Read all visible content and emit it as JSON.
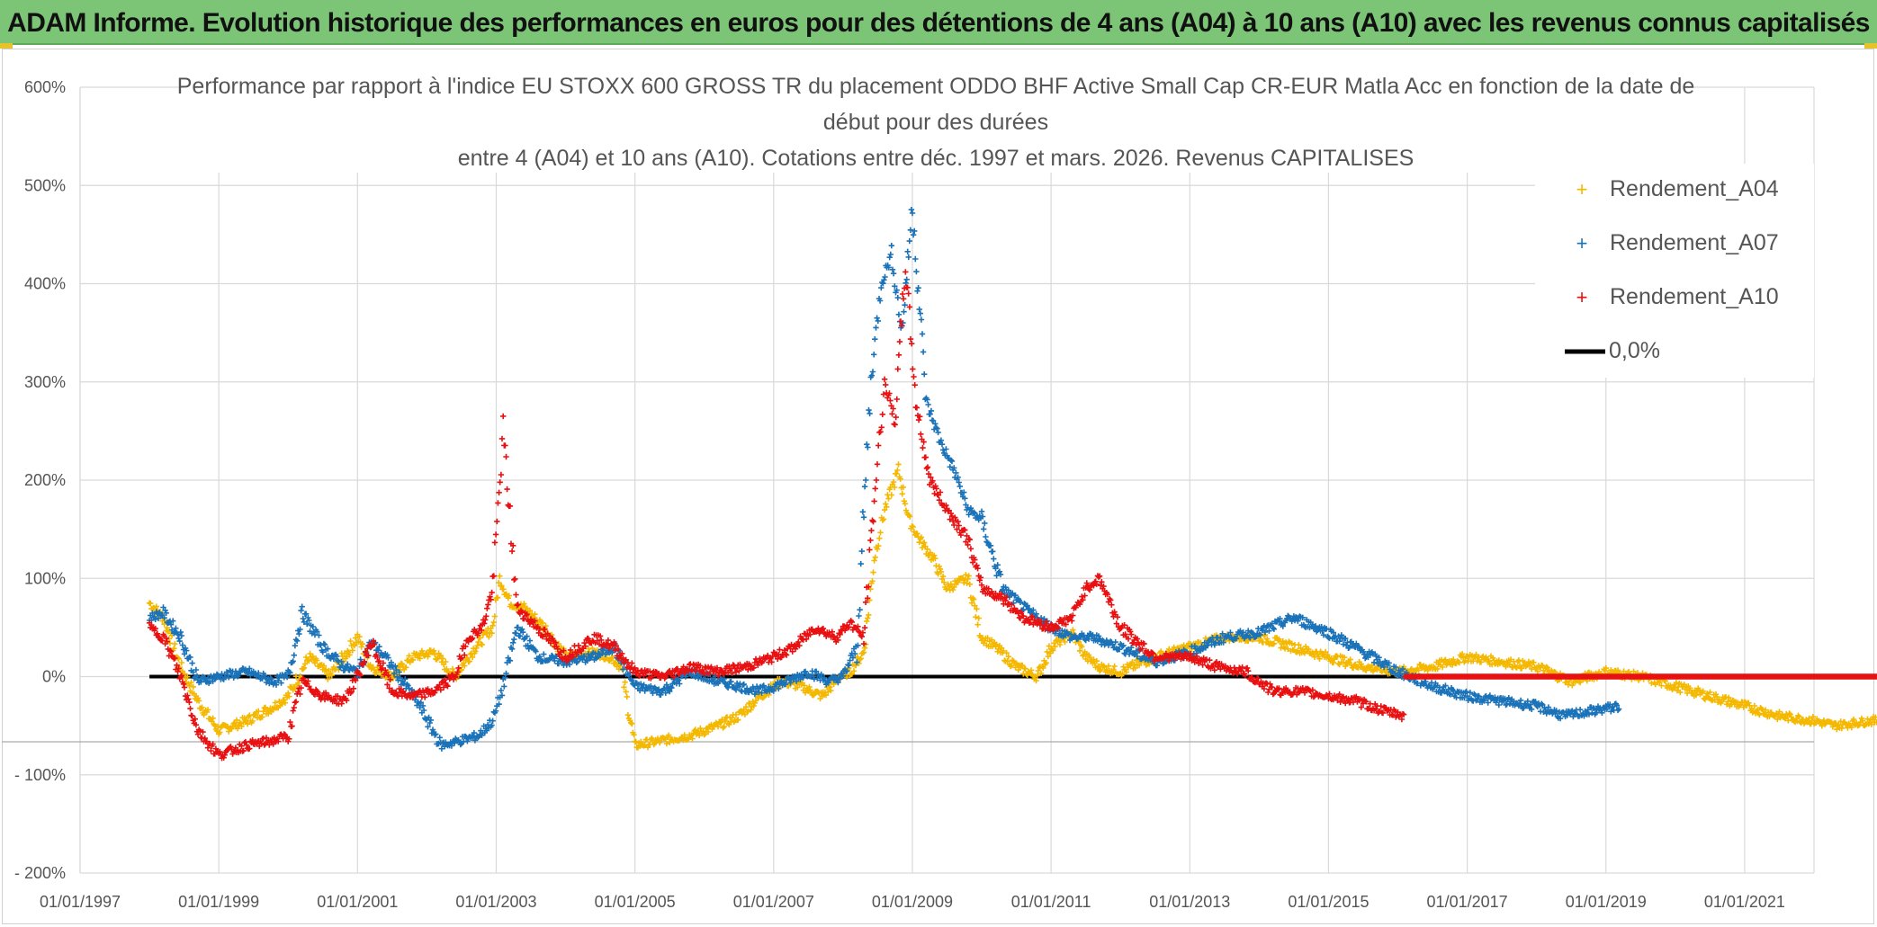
{
  "header": {
    "title": "ADAM Informe. Evolution historique des performances en euros pour des détentions de 4 ans (A04) à 10 ans (A10) avec les revenus connus capitalisés"
  },
  "colors": {
    "banner": "#7cc576",
    "a04": "#f5b800",
    "a07": "#1a72b8",
    "a10": "#e81010",
    "zero_line": "#000000",
    "grid": "#d9d9d9"
  },
  "chart_data": {
    "type": "scatter",
    "title_lines": [
      "Performance par rapport à l'indice EU STOXX 600 GROSS TR  du placement ODDO BHF Active Small Cap CR-EUR Matla Acc en fonction de la date de",
      "début pour des durées",
      "entre 4 (A04) et 10 ans (A10). Cotations entre déc. 1997 et mars. 2026. Revenus CAPITALISES"
    ],
    "x_tick_labels": [
      "01/01/1997",
      "01/01/1999",
      "01/01/2001",
      "01/01/2003",
      "01/01/2005",
      "01/01/2007",
      "01/01/2009",
      "01/01/2011",
      "01/01/2013",
      "01/01/2015",
      "01/01/2017",
      "01/01/2019",
      "01/01/2021"
    ],
    "xlim": [
      1997.0,
      2022.0
    ],
    "y_tick_labels": [
      "600%",
      "500%",
      "400%",
      "300%",
      "200%",
      "100%",
      "0%",
      "- 100%",
      "- 200%"
    ],
    "y_tick_values": [
      600,
      500,
      400,
      300,
      200,
      100,
      0,
      -100,
      -200
    ],
    "ylim": [
      -200,
      600
    ],
    "xlabel": "",
    "ylabel": "",
    "legend": [
      "Rendement_A04",
      "Rendement_A07",
      "Rendement_A10",
      "0,0%"
    ],
    "series": [
      {
        "name": "Rendement_A04",
        "x": [
          1998.0,
          1998.2,
          1998.45,
          1998.7,
          1999.0,
          1999.4,
          1999.8,
          2000.0,
          2000.3,
          2000.6,
          2001.0,
          2001.2,
          2001.5,
          2001.8,
          2002.1,
          2002.4,
          2002.7,
          2002.95,
          2003.05,
          2003.2,
          2003.4,
          2003.7,
          2004.0,
          2004.4,
          2004.65,
          2004.8,
          2005.0,
          2005.4,
          2005.8,
          2006.2,
          2006.5,
          2006.8,
          2007.1,
          2007.4,
          2007.7,
          2007.95,
          2008.1,
          2008.3,
          2008.45,
          2008.6,
          2008.8,
          2008.95,
          2009.1,
          2009.3,
          2009.5,
          2009.8,
          2010.0,
          2010.2,
          2010.5,
          2010.8,
          2011.0,
          2011.3,
          2011.5,
          2011.7,
          2012.0,
          2012.5,
          2013.0,
          2013.5,
          2014.0,
          2014.5,
          2015.0,
          2015.5,
          2016.0,
          2016.5,
          2017.0,
          2017.5,
          2018.0,
          2018.5,
          2019.0,
          2019.5,
          2020.0,
          2020.5,
          2021.0,
          2021.5,
          2022.0,
          2022.3,
          2022.6,
          2022.8,
          2023.0
        ],
        "y": [
          75,
          60,
          10,
          -25,
          -55,
          -45,
          -30,
          -20,
          20,
          0,
          40,
          10,
          0,
          20,
          25,
          0,
          30,
          50,
          100,
          75,
          70,
          50,
          20,
          25,
          20,
          10,
          -70,
          -65,
          -60,
          -50,
          -40,
          -20,
          -5,
          -10,
          -20,
          0,
          5,
          25,
          120,
          170,
          210,
          160,
          140,
          120,
          90,
          100,
          40,
          30,
          10,
          0,
          30,
          45,
          20,
          10,
          5,
          20,
          30,
          40,
          40,
          30,
          20,
          10,
          5,
          10,
          20,
          15,
          10,
          -5,
          5,
          0,
          -10,
          -20,
          -30,
          -40,
          -45,
          -50,
          -47,
          -45,
          -45
        ]
      },
      {
        "name": "Rendement_A07",
        "x": [
          1998.0,
          1998.2,
          1998.45,
          1998.7,
          1999.0,
          1999.4,
          1999.8,
          2000.0,
          2000.2,
          2000.5,
          2000.8,
          2001.0,
          2001.2,
          2001.4,
          2001.6,
          2001.9,
          2002.2,
          2002.5,
          2002.75,
          2002.95,
          2003.1,
          2003.3,
          2003.6,
          2004.0,
          2004.4,
          2004.7,
          2005.0,
          2005.4,
          2005.8,
          2006.2,
          2006.5,
          2006.8,
          2007.2,
          2007.5,
          2007.8,
          2008.0,
          2008.2,
          2008.4,
          2008.55,
          2008.7,
          2008.85,
          2009.0,
          2009.2,
          2009.4,
          2009.6,
          2009.8,
          2010.0,
          2010.3,
          2010.6,
          2011.0,
          2011.3,
          2011.6,
          2011.8,
          2012.0,
          2012.5,
          2013.0,
          2013.5,
          2014.0,
          2014.5,
          2015.0,
          2015.5,
          2016.0,
          2016.5,
          2017.0,
          2017.5,
          2018.0,
          2018.4,
          2018.8,
          2019.2
        ],
        "y": [
          60,
          65,
          40,
          -5,
          0,
          5,
          -5,
          0,
          65,
          30,
          10,
          5,
          35,
          20,
          0,
          -30,
          -70,
          -65,
          -60,
          -45,
          -10,
          50,
          20,
          15,
          20,
          30,
          -10,
          -15,
          5,
          -5,
          -10,
          -15,
          -5,
          5,
          -5,
          0,
          30,
          300,
          400,
          430,
          350,
          480,
          280,
          240,
          210,
          170,
          160,
          90,
          70,
          50,
          40,
          40,
          35,
          30,
          15,
          25,
          40,
          45,
          60,
          45,
          25,
          5,
          -10,
          -20,
          -25,
          -30,
          -40,
          -35,
          -30
        ]
      },
      {
        "name": "Rendement_A10",
        "x": [
          1998.0,
          1998.2,
          1998.45,
          1998.7,
          1999.0,
          1999.4,
          1999.8,
          2000.0,
          2000.2,
          2000.5,
          2000.8,
          2001.0,
          2001.2,
          2001.5,
          2001.8,
          2002.1,
          2002.4,
          2002.6,
          2002.8,
          2002.95,
          2003.1,
          2003.3,
          2003.6,
          2004.0,
          2004.4,
          2004.7,
          2005.0,
          2005.4,
          2005.8,
          2006.2,
          2006.6,
          2007.0,
          2007.3,
          2007.6,
          2007.9,
          2008.1,
          2008.3,
          2008.45,
          2008.6,
          2008.75,
          2008.9,
          2009.05,
          2009.25,
          2009.5,
          2009.8,
          2010.0,
          2010.3,
          2010.6,
          2011.0,
          2011.3,
          2011.5,
          2011.7,
          2012.0,
          2012.5,
          2013.0,
          2013.4,
          2013.8,
          2014.2,
          2014.6,
          2015.0,
          2015.4,
          2015.8,
          2016.1
        ],
        "y": [
          50,
          40,
          0,
          -55,
          -80,
          -70,
          -65,
          -60,
          -5,
          -20,
          -25,
          0,
          35,
          -15,
          -20,
          -15,
          0,
          40,
          50,
          90,
          250,
          70,
          50,
          20,
          40,
          30,
          5,
          0,
          10,
          5,
          10,
          20,
          30,
          50,
          40,
          55,
          40,
          180,
          300,
          260,
          420,
          280,
          200,
          170,
          140,
          90,
          80,
          60,
          50,
          60,
          90,
          100,
          50,
          20,
          20,
          10,
          5,
          -15,
          -15,
          -20,
          -25,
          -35,
          -40
        ]
      },
      {
        "name": "Rendement_A10_flat",
        "x": [
          2016.1,
          2023.0
        ],
        "y": [
          0,
          0
        ]
      }
    ],
    "zero_line": {
      "name": "0,0%",
      "x": [
        1998.0,
        2023.0
      ],
      "y": [
        0,
        0
      ]
    }
  }
}
